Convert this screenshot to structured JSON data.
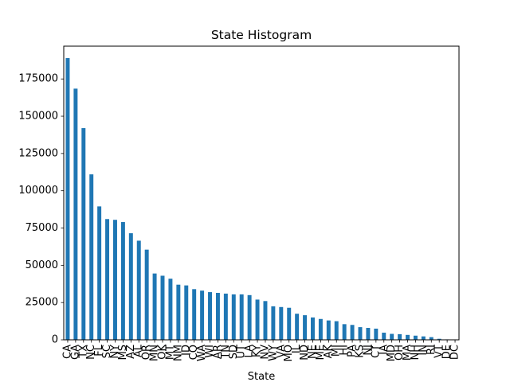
{
  "chart_data": {
    "type": "bar",
    "title": "State Histogram",
    "xlabel": "State",
    "ylabel": "",
    "ylim": [
      0,
      197000
    ],
    "yticks": [
      0,
      25000,
      50000,
      75000,
      100000,
      125000,
      150000,
      175000
    ],
    "color": "#1f77b4",
    "grid": false,
    "legend": "none",
    "categories": [
      "CA",
      "GA",
      "TX",
      "NC",
      "FL",
      "SC",
      "NY",
      "MS",
      "AZ",
      "AL",
      "OR",
      "MN",
      "OK",
      "MT",
      "NM",
      "ID",
      "CO",
      "WA",
      "WI",
      "AR",
      "TN",
      "SD",
      "UT",
      "LA",
      "KY",
      "NV",
      "WY",
      "VA",
      "MO",
      "IL",
      "ND",
      "NE",
      "ME",
      "AK",
      "MI",
      "HI",
      "PA",
      "KS",
      "NJ",
      "CT",
      "IA",
      "MD",
      "OH",
      "MA",
      "NH",
      "IN",
      "RI",
      "VT",
      "DE",
      "DC"
    ],
    "values": [
      189000,
      168500,
      142000,
      111000,
      89500,
      81000,
      80500,
      79000,
      71500,
      66500,
      60500,
      44500,
      43000,
      41000,
      37000,
      36500,
      34000,
      33000,
      32000,
      31500,
      31000,
      30500,
      30500,
      30000,
      27000,
      26000,
      22500,
      22000,
      21500,
      17500,
      16500,
      15000,
      14000,
      13000,
      12500,
      10500,
      10000,
      8500,
      8000,
      7500,
      4800,
      4000,
      3800,
      3300,
      2800,
      2300,
      1800,
      700,
      300,
      150
    ]
  }
}
